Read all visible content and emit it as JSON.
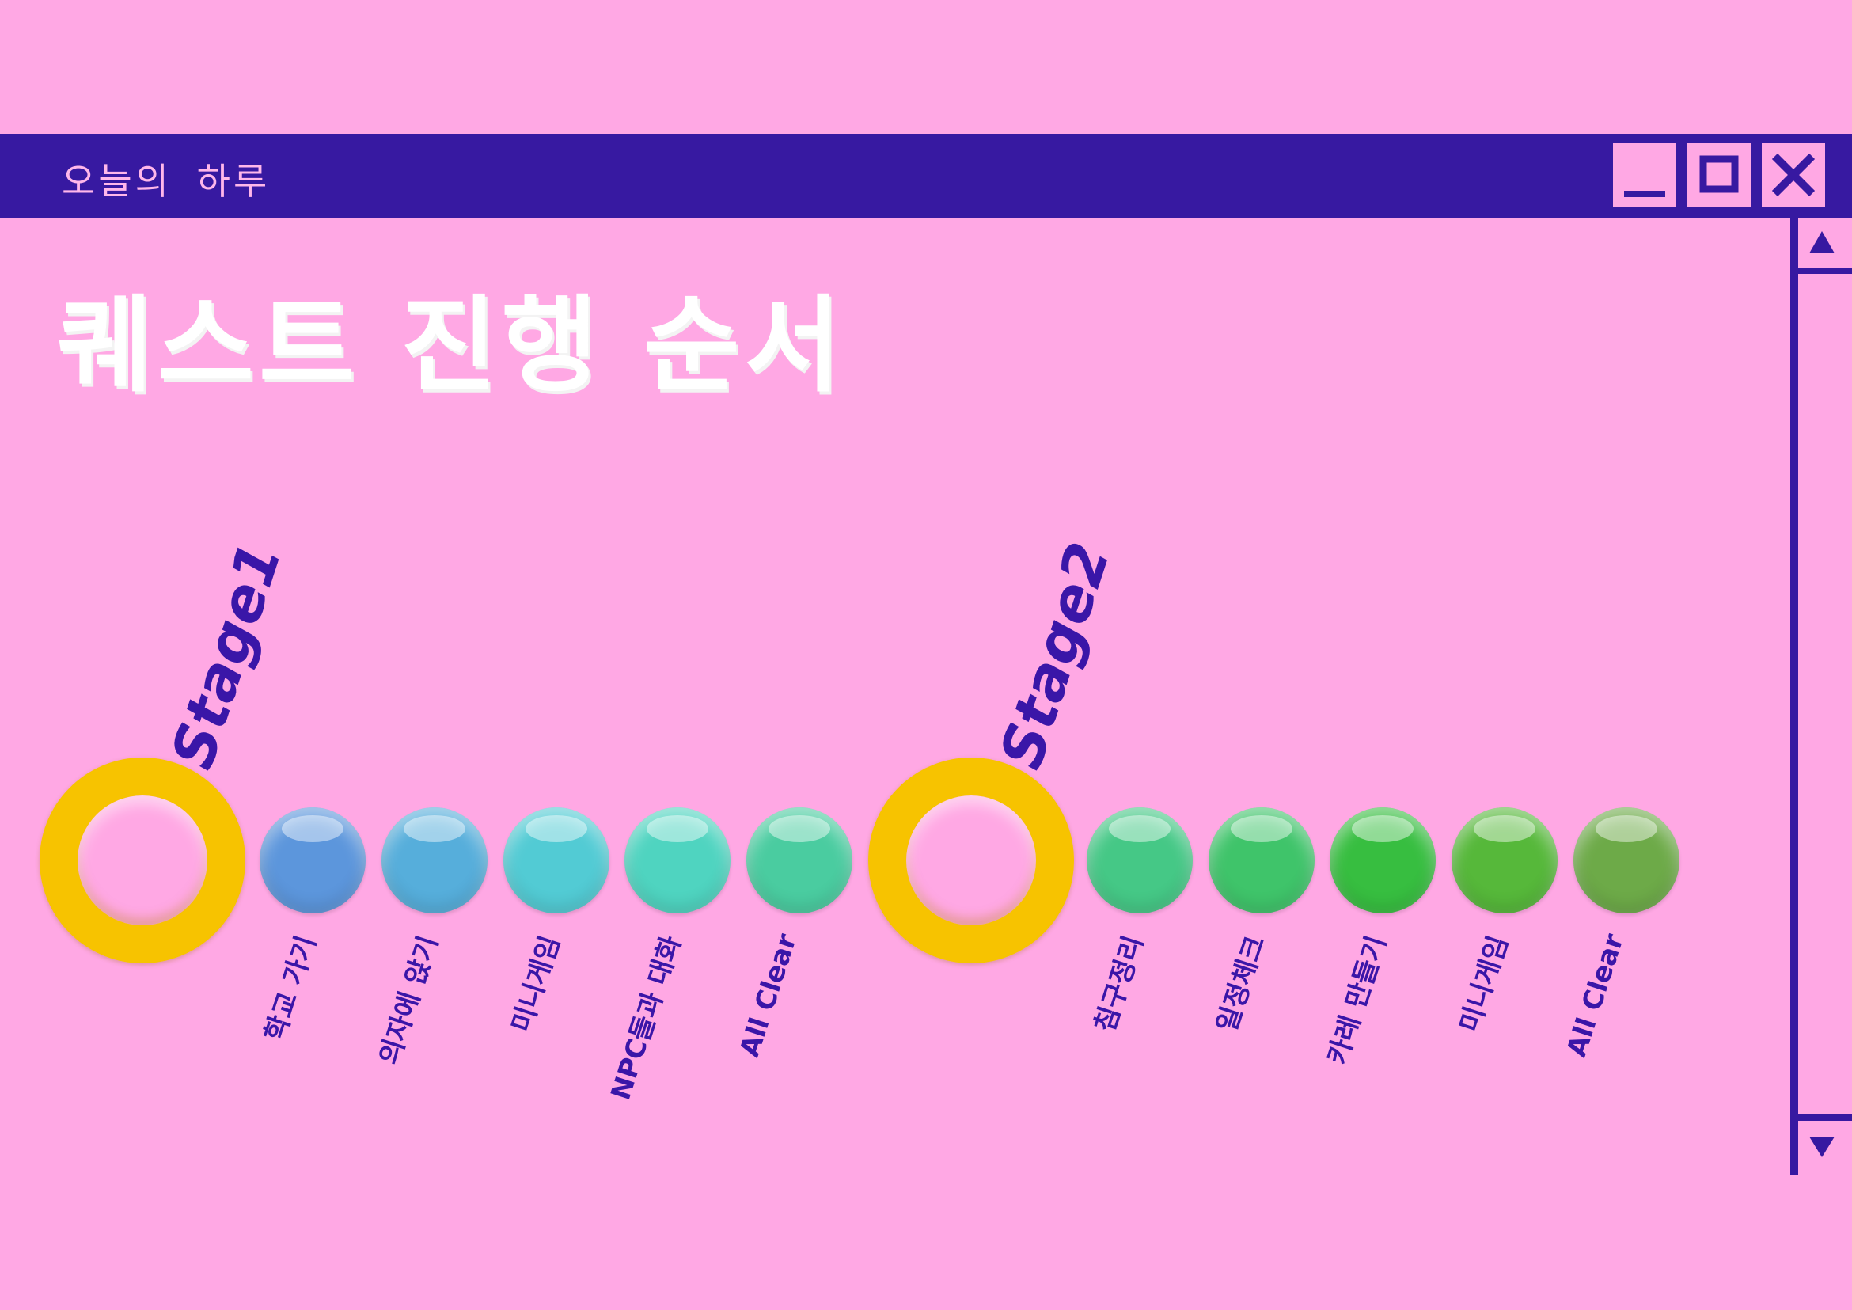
{
  "window": {
    "title": "오늘의 하루",
    "icons": [
      "minimize-icon",
      "maximize-icon",
      "close-icon"
    ]
  },
  "heading": "퀘스트 진행 순서",
  "stages": [
    {
      "label": "Stage1",
      "steps": [
        "학교 가기",
        "의자에 앉기",
        "미니게임",
        "NPC들과 대화",
        "All Clear"
      ]
    },
    {
      "label": "Stage2",
      "steps": [
        "침구정리",
        "일정체크",
        "카레 만들기",
        "미니게임",
        "All Clear"
      ]
    }
  ],
  "colors": {
    "background": "#ffa8e4",
    "titlebar": "#3719a1",
    "ring": "#f7c300",
    "stage1_balls": [
      "#5c96dc",
      "#56aedb",
      "#52cbd4",
      "#4fd4c0",
      "#4acca0"
    ],
    "stage2_balls": [
      "#45c886",
      "#3fc46a",
      "#37be40",
      "#56b83a",
      "#6daa48"
    ]
  }
}
